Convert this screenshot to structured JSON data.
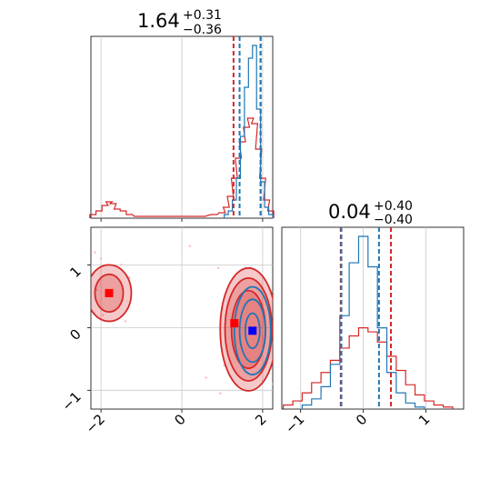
{
  "chart_data": {
    "type": "corner",
    "colors": {
      "red": "#d62728",
      "blue": "#1f77b4",
      "grid": "#c8c8c8"
    },
    "params": [
      {
        "title_value": "1.64",
        "title_plus": "+0.31",
        "title_minus": "−0.36"
      },
      {
        "title_value": "0.04",
        "title_plus": "+0.40",
        "title_minus": "−0.40"
      }
    ],
    "x0_axis": {
      "range": [
        -2.25,
        2.25
      ],
      "ticks": [
        -2,
        0,
        2
      ],
      "tick_labels": [
        "−2",
        "0",
        "2"
      ]
    },
    "x1_axis": {
      "range": [
        -1.3,
        1.6
      ],
      "ticks": [
        -1,
        0,
        1
      ],
      "tick_labels": [
        "−1",
        "0",
        "1"
      ]
    },
    "y1_axis": {
      "range": [
        -1.3,
        1.6
      ],
      "ticks": [
        -1,
        0,
        1
      ],
      "tick_labels": [
        "−1",
        "0",
        "1"
      ]
    },
    "marginal_x0": {
      "red_quantiles": [
        1.28,
        1.95
      ],
      "blue_quantiles": [
        1.43,
        1.95
      ],
      "red_hist": [
        {
          "x": -2.2,
          "h": 0.02
        },
        {
          "x": -2.05,
          "h": 0.04
        },
        {
          "x": -1.9,
          "h": 0.07
        },
        {
          "x": -1.8,
          "h": 0.09
        },
        {
          "x": -1.7,
          "h": 0.08
        },
        {
          "x": -1.6,
          "h": 0.05
        },
        {
          "x": -1.45,
          "h": 0.04
        },
        {
          "x": -1.3,
          "h": 0.02
        },
        {
          "x": -1.1,
          "h": 0.01
        },
        {
          "x": 0.2,
          "h": 0.01
        },
        {
          "x": 0.5,
          "h": 0.01
        },
        {
          "x": 0.8,
          "h": 0.02
        },
        {
          "x": 1.0,
          "h": 0.03
        },
        {
          "x": 1.1,
          "h": 0.06
        },
        {
          "x": 1.2,
          "h": 0.12
        },
        {
          "x": 1.3,
          "h": 0.22
        },
        {
          "x": 1.4,
          "h": 0.33
        },
        {
          "x": 1.5,
          "h": 0.42
        },
        {
          "x": 1.6,
          "h": 0.5
        },
        {
          "x": 1.7,
          "h": 0.55
        },
        {
          "x": 1.8,
          "h": 0.52
        },
        {
          "x": 1.9,
          "h": 0.38
        },
        {
          "x": 2.0,
          "h": 0.22
        },
        {
          "x": 2.1,
          "h": 0.1
        },
        {
          "x": 2.2,
          "h": 0.04
        }
      ],
      "blue_hist": [
        {
          "x": 1.1,
          "h": 0.02
        },
        {
          "x": 1.2,
          "h": 0.04
        },
        {
          "x": 1.3,
          "h": 0.1
        },
        {
          "x": 1.4,
          "h": 0.22
        },
        {
          "x": 1.5,
          "h": 0.45
        },
        {
          "x": 1.6,
          "h": 0.72
        },
        {
          "x": 1.7,
          "h": 0.88
        },
        {
          "x": 1.8,
          "h": 0.95
        },
        {
          "x": 1.9,
          "h": 0.6
        },
        {
          "x": 2.0,
          "h": 0.2
        },
        {
          "x": 2.1,
          "h": 0.06
        },
        {
          "x": 2.2,
          "h": 0.02
        }
      ]
    },
    "marginal_x1": {
      "red_quantiles": [
        -0.36,
        0.44
      ],
      "blue_quantiles": [
        -0.35,
        0.25
      ],
      "red_hist": [
        {
          "x": -1.2,
          "h": 0.02
        },
        {
          "x": -1.05,
          "h": 0.04
        },
        {
          "x": -0.9,
          "h": 0.08
        },
        {
          "x": -0.75,
          "h": 0.13
        },
        {
          "x": -0.6,
          "h": 0.18
        },
        {
          "x": -0.45,
          "h": 0.24
        },
        {
          "x": -0.3,
          "h": 0.3
        },
        {
          "x": -0.15,
          "h": 0.36
        },
        {
          "x": 0.0,
          "h": 0.4
        },
        {
          "x": 0.15,
          "h": 0.38
        },
        {
          "x": 0.3,
          "h": 0.33
        },
        {
          "x": 0.45,
          "h": 0.26
        },
        {
          "x": 0.6,
          "h": 0.19
        },
        {
          "x": 0.75,
          "h": 0.12
        },
        {
          "x": 0.9,
          "h": 0.07
        },
        {
          "x": 1.05,
          "h": 0.04
        },
        {
          "x": 1.2,
          "h": 0.02
        },
        {
          "x": 1.35,
          "h": 0.01
        }
      ],
      "blue_hist": [
        {
          "x": -0.9,
          "h": 0.02
        },
        {
          "x": -0.75,
          "h": 0.05
        },
        {
          "x": -0.6,
          "h": 0.11
        },
        {
          "x": -0.45,
          "h": 0.22
        },
        {
          "x": -0.3,
          "h": 0.46
        },
        {
          "x": -0.15,
          "h": 0.72
        },
        {
          "x": 0.0,
          "h": 0.85
        },
        {
          "x": 0.15,
          "h": 0.7
        },
        {
          "x": 0.3,
          "h": 0.4
        },
        {
          "x": 0.45,
          "h": 0.18
        },
        {
          "x": 0.6,
          "h": 0.08
        },
        {
          "x": 0.75,
          "h": 0.03
        },
        {
          "x": 0.9,
          "h": 0.01
        }
      ]
    },
    "joint": {
      "red_contours": [
        {
          "cx": -1.8,
          "cy": 0.55,
          "rx": 0.55,
          "ry": 0.45
        },
        {
          "cx": -1.8,
          "cy": 0.55,
          "rx": 0.35,
          "ry": 0.3
        },
        {
          "cx": 1.65,
          "cy": -0.03,
          "rx": 0.7,
          "ry": 0.98
        },
        {
          "cx": 1.65,
          "cy": -0.03,
          "rx": 0.58,
          "ry": 0.82
        },
        {
          "cx": 1.65,
          "cy": -0.03,
          "rx": 0.42,
          "ry": 0.62
        }
      ],
      "blue_contours": [
        {
          "cx": 1.75,
          "cy": -0.05,
          "rx": 0.45,
          "ry": 0.7
        },
        {
          "cx": 1.75,
          "cy": -0.05,
          "rx": 0.32,
          "ry": 0.5
        },
        {
          "cx": 1.75,
          "cy": -0.05,
          "rx": 0.18,
          "ry": 0.28
        }
      ],
      "red_markers": [
        {
          "x": -1.8,
          "y": 0.55
        },
        {
          "x": 1.3,
          "y": 0.07
        }
      ],
      "blue_markers": [
        {
          "x": 1.75,
          "y": -0.05
        }
      ],
      "scatter_points": [
        {
          "x": -2.15,
          "y": 1.2
        },
        {
          "x": -2.0,
          "y": 1.1
        },
        {
          "x": -1.95,
          "y": 0.2
        },
        {
          "x": -1.5,
          "y": 1.0
        },
        {
          "x": -1.4,
          "y": 0.1
        },
        {
          "x": -1.3,
          "y": 0.8
        },
        {
          "x": -2.1,
          "y": 0.6
        },
        {
          "x": 0.2,
          "y": 1.3
        },
        {
          "x": 0.6,
          "y": -0.8
        },
        {
          "x": 0.9,
          "y": 0.95
        },
        {
          "x": 0.95,
          "y": -1.05
        },
        {
          "x": 1.0,
          "y": 0.3
        },
        {
          "x": 1.05,
          "y": -0.6
        },
        {
          "x": 2.3,
          "y": 0.8
        },
        {
          "x": 2.25,
          "y": -0.9
        },
        {
          "x": 2.35,
          "y": 0.2
        }
      ]
    }
  }
}
